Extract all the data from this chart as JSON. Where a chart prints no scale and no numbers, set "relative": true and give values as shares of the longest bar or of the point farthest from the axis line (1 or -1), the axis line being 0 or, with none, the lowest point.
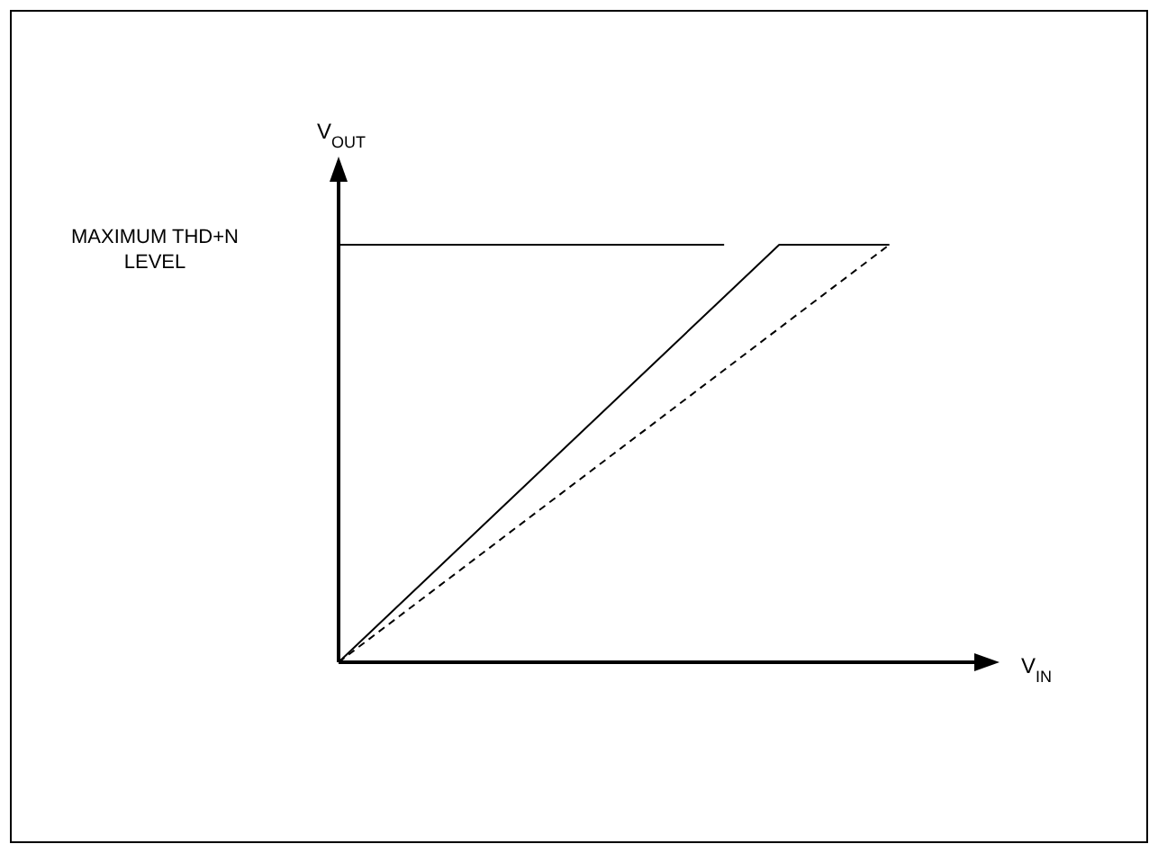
{
  "chart_data": {
    "type": "line",
    "relative": true,
    "xlabel": "V$_{IN}$",
    "ylabel": "V$_{OUT}$",
    "categories": [
      null,
      null,
      null,
      null,
      null,
      null,
      null,
      null,
      null,
      null,
      null,
      null,
      null
    ],
    "series": [
      {
        "name": "MAXIMUM THD+N LEVEL",
        "color": "#000000",
        "values": [
          1,
          1,
          1,
          1,
          1,
          1,
          1,
          1,
          null,
          null,
          null,
          null,
          null
        ],
        "line_style": "solid"
      },
      {
        "color": "#000000",
        "values": [
          0,
          0.125,
          0.25,
          0.375,
          0.5,
          0.625,
          0.75,
          0.875,
          1,
          1,
          1,
          null,
          null
        ],
        "line_style": "solid"
      },
      {
        "color": "#000000",
        "values": [
          0,
          0.1,
          0.2,
          0.3,
          0.4,
          0.5,
          0.6,
          0.7,
          0.8,
          0.9,
          1,
          null,
          null
        ],
        "line_style": "dashed"
      }
    ]
  }
}
